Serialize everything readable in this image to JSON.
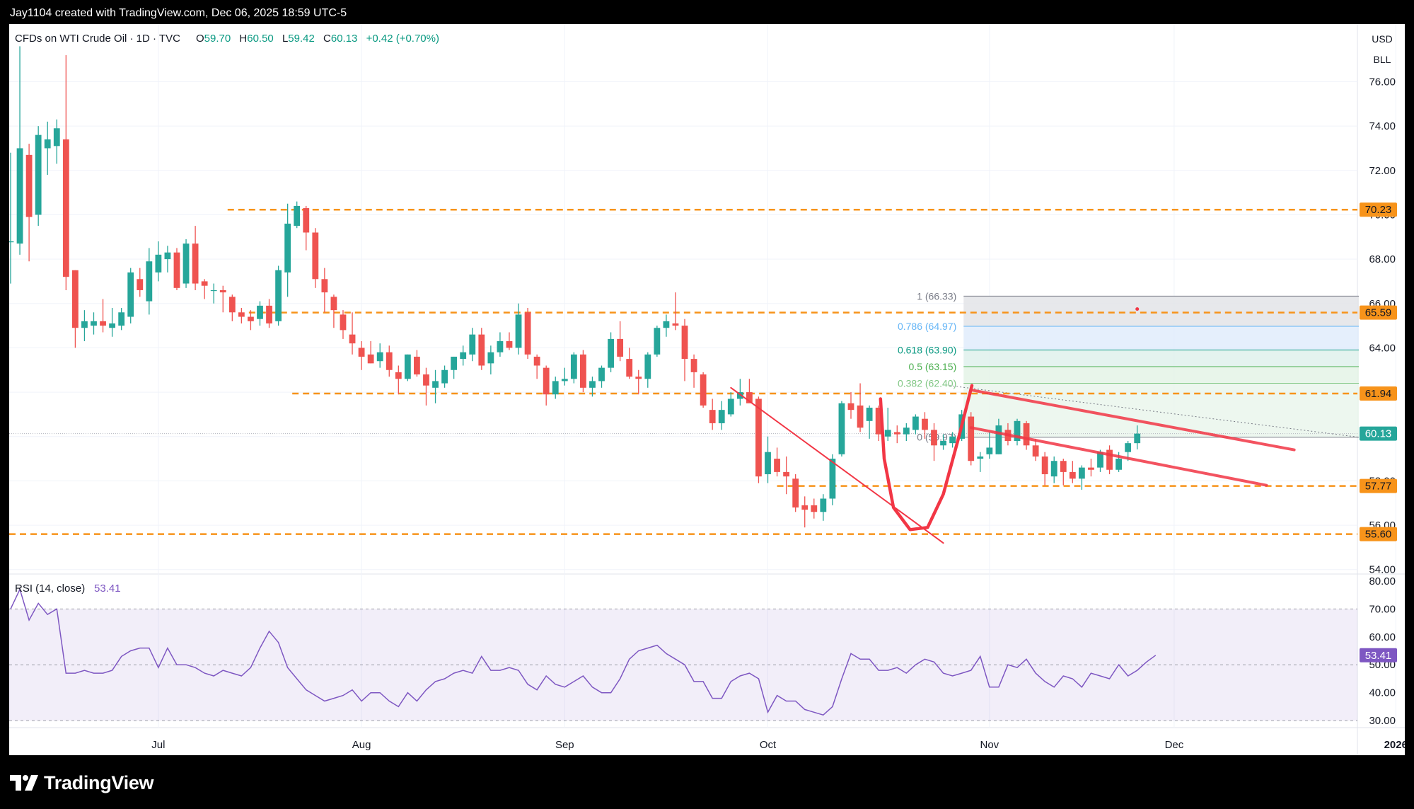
{
  "header": {
    "attribution": "Jay1104 created with TradingView.com, Dec 06, 2025 18:59 UTC-5"
  },
  "legend": {
    "symbol": "CFDs on WTI Crude Oil · 1D · TVC",
    "open_label": "O",
    "open": "59.70",
    "high_label": "H",
    "high": "60.50",
    "low_label": "L",
    "low": "59.42",
    "close_label": "C",
    "close": "60.13",
    "change": "+0.42 (+0.70%)"
  },
  "currency": "USD",
  "unit": "BLL",
  "rsi_legend": {
    "label": "RSI (14, close)",
    "value": "53.41"
  },
  "logo": {
    "text": "TradingView"
  },
  "colors": {
    "up": "#26a69a",
    "down": "#ef5350",
    "level": "#f7931a",
    "trendline": "#f23645",
    "rsi": "#7e57c2",
    "fib_text": "#089981"
  },
  "chart_data": [
    {
      "type": "candlestick",
      "title": "CFDs on WTI Crude Oil · 1D · TVC",
      "xlabel": "",
      "ylabel": "",
      "ylim": [
        53.8,
        78.6
      ],
      "y_ticks": [
        54,
        56,
        58,
        60,
        62,
        64,
        66,
        68,
        70,
        72,
        74,
        76
      ],
      "y_tick_labels": [
        "54.00",
        "56.00",
        "58.00",
        "60.00",
        "62.00",
        "64.00",
        "66.00",
        "68.00",
        "70.00",
        "72.00",
        "74.00",
        "76.00"
      ],
      "x_labels": [
        {
          "label": "Jul",
          "index": 16
        },
        {
          "label": "Aug",
          "index": 38
        },
        {
          "label": "Sep",
          "index": 60
        },
        {
          "label": "Oct",
          "index": 82
        },
        {
          "label": "Nov",
          "index": 106
        },
        {
          "label": "Dec",
          "index": 126
        },
        {
          "label": "2026",
          "index": 150
        }
      ],
      "candles": [
        {
          "o": 68.8,
          "h": 72.8,
          "l": 66.9,
          "c": 68.8
        },
        {
          "o": 68.7,
          "h": 77.6,
          "l": 68.2,
          "c": 73.0
        },
        {
          "o": 72.7,
          "h": 73.2,
          "l": 67.9,
          "c": 69.9
        },
        {
          "o": 70.0,
          "h": 74.0,
          "l": 69.5,
          "c": 73.6
        },
        {
          "o": 73.0,
          "h": 74.2,
          "l": 71.8,
          "c": 73.4
        },
        {
          "o": 73.1,
          "h": 74.3,
          "l": 72.3,
          "c": 73.9
        },
        {
          "o": 73.4,
          "h": 77.2,
          "l": 66.6,
          "c": 67.2
        },
        {
          "o": 67.5,
          "h": 67.5,
          "l": 64.0,
          "c": 64.9
        },
        {
          "o": 64.9,
          "h": 65.7,
          "l": 64.3,
          "c": 65.2
        },
        {
          "o": 65.0,
          "h": 65.6,
          "l": 64.6,
          "c": 65.2
        },
        {
          "o": 65.2,
          "h": 66.2,
          "l": 64.7,
          "c": 65.0
        },
        {
          "o": 64.9,
          "h": 65.8,
          "l": 64.5,
          "c": 65.1
        },
        {
          "o": 65.0,
          "h": 65.8,
          "l": 64.8,
          "c": 65.6
        },
        {
          "o": 65.4,
          "h": 67.6,
          "l": 65.1,
          "c": 67.4
        },
        {
          "o": 67.1,
          "h": 67.6,
          "l": 66.3,
          "c": 66.6
        },
        {
          "o": 66.1,
          "h": 68.5,
          "l": 65.5,
          "c": 67.9
        },
        {
          "o": 67.4,
          "h": 68.8,
          "l": 67.0,
          "c": 68.2
        },
        {
          "o": 68.0,
          "h": 68.6,
          "l": 67.4,
          "c": 68.3
        },
        {
          "o": 68.3,
          "h": 68.5,
          "l": 66.6,
          "c": 66.7
        },
        {
          "o": 66.9,
          "h": 68.9,
          "l": 66.7,
          "c": 68.7
        },
        {
          "o": 68.7,
          "h": 69.5,
          "l": 66.6,
          "c": 66.9
        },
        {
          "o": 67.0,
          "h": 67.1,
          "l": 66.2,
          "c": 66.8
        },
        {
          "o": 66.6,
          "h": 66.9,
          "l": 66.0,
          "c": 66.6
        },
        {
          "o": 66.6,
          "h": 66.8,
          "l": 65.6,
          "c": 66.5
        },
        {
          "o": 66.3,
          "h": 66.4,
          "l": 65.2,
          "c": 65.6
        },
        {
          "o": 65.6,
          "h": 65.8,
          "l": 65.1,
          "c": 65.4
        },
        {
          "o": 65.4,
          "h": 65.7,
          "l": 64.8,
          "c": 65.2
        },
        {
          "o": 65.3,
          "h": 66.1,
          "l": 65.0,
          "c": 65.9
        },
        {
          "o": 65.9,
          "h": 66.2,
          "l": 64.9,
          "c": 65.1
        },
        {
          "o": 65.2,
          "h": 67.7,
          "l": 65.0,
          "c": 67.5
        },
        {
          "o": 67.4,
          "h": 70.5,
          "l": 66.3,
          "c": 69.6
        },
        {
          "o": 69.5,
          "h": 70.6,
          "l": 69.4,
          "c": 70.4
        },
        {
          "o": 70.3,
          "h": 70.4,
          "l": 68.4,
          "c": 69.2
        },
        {
          "o": 69.2,
          "h": 69.4,
          "l": 66.7,
          "c": 67.1
        },
        {
          "o": 67.1,
          "h": 67.6,
          "l": 65.6,
          "c": 66.5
        },
        {
          "o": 66.3,
          "h": 66.4,
          "l": 64.9,
          "c": 65.7
        },
        {
          "o": 65.5,
          "h": 65.7,
          "l": 64.4,
          "c": 64.8
        },
        {
          "o": 64.6,
          "h": 65.6,
          "l": 63.7,
          "c": 64.2
        },
        {
          "o": 64.0,
          "h": 64.3,
          "l": 63.0,
          "c": 63.6
        },
        {
          "o": 63.7,
          "h": 64.3,
          "l": 63.3,
          "c": 63.3
        },
        {
          "o": 63.4,
          "h": 64.2,
          "l": 63.1,
          "c": 63.8
        },
        {
          "o": 63.8,
          "h": 64.1,
          "l": 62.7,
          "c": 63.0
        },
        {
          "o": 62.9,
          "h": 63.2,
          "l": 61.9,
          "c": 62.6
        },
        {
          "o": 62.6,
          "h": 63.7,
          "l": 62.5,
          "c": 63.7
        },
        {
          "o": 63.6,
          "h": 63.9,
          "l": 62.7,
          "c": 62.8
        },
        {
          "o": 62.8,
          "h": 63.1,
          "l": 61.4,
          "c": 62.3
        },
        {
          "o": 62.2,
          "h": 63.0,
          "l": 61.5,
          "c": 62.5
        },
        {
          "o": 62.4,
          "h": 63.2,
          "l": 62.2,
          "c": 63.0
        },
        {
          "o": 63.0,
          "h": 63.6,
          "l": 62.6,
          "c": 63.6
        },
        {
          "o": 63.5,
          "h": 64.1,
          "l": 63.2,
          "c": 63.8
        },
        {
          "o": 63.7,
          "h": 64.9,
          "l": 63.4,
          "c": 64.6
        },
        {
          "o": 64.6,
          "h": 64.9,
          "l": 63.0,
          "c": 63.2
        },
        {
          "o": 63.3,
          "h": 64.1,
          "l": 62.8,
          "c": 63.8
        },
        {
          "o": 63.8,
          "h": 64.7,
          "l": 63.6,
          "c": 64.3
        },
        {
          "o": 64.3,
          "h": 64.7,
          "l": 63.9,
          "c": 64.0
        },
        {
          "o": 64.0,
          "h": 66.0,
          "l": 63.7,
          "c": 65.5
        },
        {
          "o": 65.6,
          "h": 65.8,
          "l": 63.5,
          "c": 63.7
        },
        {
          "o": 63.6,
          "h": 63.7,
          "l": 62.6,
          "c": 63.2
        },
        {
          "o": 63.1,
          "h": 63.2,
          "l": 61.4,
          "c": 61.9
        },
        {
          "o": 61.9,
          "h": 62.7,
          "l": 61.7,
          "c": 62.5
        },
        {
          "o": 62.5,
          "h": 63.1,
          "l": 62.3,
          "c": 62.6
        },
        {
          "o": 62.6,
          "h": 63.8,
          "l": 62.4,
          "c": 63.7
        },
        {
          "o": 63.7,
          "h": 63.9,
          "l": 62.0,
          "c": 62.2
        },
        {
          "o": 62.2,
          "h": 62.7,
          "l": 61.8,
          "c": 62.5
        },
        {
          "o": 62.5,
          "h": 63.2,
          "l": 62.2,
          "c": 63.1
        },
        {
          "o": 63.1,
          "h": 64.7,
          "l": 62.9,
          "c": 64.4
        },
        {
          "o": 64.4,
          "h": 65.2,
          "l": 63.4,
          "c": 63.6
        },
        {
          "o": 63.5,
          "h": 64.0,
          "l": 62.6,
          "c": 62.7
        },
        {
          "o": 62.7,
          "h": 63.0,
          "l": 61.9,
          "c": 62.6
        },
        {
          "o": 62.6,
          "h": 63.8,
          "l": 62.2,
          "c": 63.7
        },
        {
          "o": 63.7,
          "h": 65.0,
          "l": 63.6,
          "c": 64.9
        },
        {
          "o": 64.9,
          "h": 65.5,
          "l": 64.5,
          "c": 65.2
        },
        {
          "o": 65.1,
          "h": 66.5,
          "l": 64.8,
          "c": 65.0
        },
        {
          "o": 65.0,
          "h": 65.3,
          "l": 62.5,
          "c": 63.5
        },
        {
          "o": 63.5,
          "h": 63.7,
          "l": 62.2,
          "c": 62.9
        },
        {
          "o": 62.8,
          "h": 62.9,
          "l": 61.3,
          "c": 61.4
        },
        {
          "o": 61.2,
          "h": 61.7,
          "l": 60.3,
          "c": 60.6
        },
        {
          "o": 60.6,
          "h": 61.6,
          "l": 60.3,
          "c": 61.2
        },
        {
          "o": 61.0,
          "h": 62.0,
          "l": 60.9,
          "c": 61.7
        },
        {
          "o": 61.7,
          "h": 62.6,
          "l": 61.4,
          "c": 62.0
        },
        {
          "o": 62.0,
          "h": 62.6,
          "l": 61.6,
          "c": 61.5
        },
        {
          "o": 61.7,
          "h": 61.8,
          "l": 57.9,
          "c": 58.2
        },
        {
          "o": 58.3,
          "h": 60.0,
          "l": 57.9,
          "c": 59.3
        },
        {
          "o": 59.0,
          "h": 59.5,
          "l": 58.2,
          "c": 58.4
        },
        {
          "o": 58.4,
          "h": 59.1,
          "l": 57.4,
          "c": 58.2
        },
        {
          "o": 58.1,
          "h": 58.3,
          "l": 56.6,
          "c": 56.8
        },
        {
          "o": 56.9,
          "h": 57.3,
          "l": 55.9,
          "c": 56.7
        },
        {
          "o": 56.9,
          "h": 57.2,
          "l": 56.3,
          "c": 56.6
        },
        {
          "o": 56.6,
          "h": 57.4,
          "l": 56.2,
          "c": 57.2
        },
        {
          "o": 57.2,
          "h": 59.2,
          "l": 56.9,
          "c": 59.0
        },
        {
          "o": 59.2,
          "h": 61.6,
          "l": 59.1,
          "c": 61.5
        },
        {
          "o": 61.5,
          "h": 62.0,
          "l": 60.8,
          "c": 61.2
        },
        {
          "o": 61.4,
          "h": 62.4,
          "l": 60.2,
          "c": 60.4
        },
        {
          "o": 60.7,
          "h": 61.4,
          "l": 59.9,
          "c": 61.3
        },
        {
          "o": 61.3,
          "h": 61.4,
          "l": 59.8,
          "c": 60.1
        },
        {
          "o": 60.0,
          "h": 61.3,
          "l": 59.8,
          "c": 60.3
        },
        {
          "o": 60.2,
          "h": 60.5,
          "l": 59.7,
          "c": 60.1
        },
        {
          "o": 60.1,
          "h": 60.6,
          "l": 59.8,
          "c": 60.4
        },
        {
          "o": 60.3,
          "h": 61.0,
          "l": 60.1,
          "c": 60.9
        },
        {
          "o": 60.8,
          "h": 61.1,
          "l": 59.9,
          "c": 60.3
        },
        {
          "o": 60.3,
          "h": 60.6,
          "l": 58.9,
          "c": 59.6
        },
        {
          "o": 59.6,
          "h": 60.1,
          "l": 59.4,
          "c": 59.8
        },
        {
          "o": 59.7,
          "h": 60.2,
          "l": 59.5,
          "c": 60.0
        },
        {
          "o": 59.9,
          "h": 61.2,
          "l": 59.8,
          "c": 61.0
        },
        {
          "o": 60.9,
          "h": 61.1,
          "l": 58.7,
          "c": 58.9
        },
        {
          "o": 59.0,
          "h": 59.3,
          "l": 58.4,
          "c": 59.1
        },
        {
          "o": 59.2,
          "h": 60.2,
          "l": 59.0,
          "c": 59.5
        },
        {
          "o": 59.2,
          "h": 60.8,
          "l": 59.2,
          "c": 60.5
        },
        {
          "o": 60.3,
          "h": 60.6,
          "l": 59.6,
          "c": 59.8
        },
        {
          "o": 59.8,
          "h": 60.8,
          "l": 59.6,
          "c": 60.7
        },
        {
          "o": 60.6,
          "h": 60.7,
          "l": 59.4,
          "c": 59.6
        },
        {
          "o": 59.6,
          "h": 59.9,
          "l": 58.9,
          "c": 59.1
        },
        {
          "o": 59.1,
          "h": 59.3,
          "l": 57.8,
          "c": 58.3
        },
        {
          "o": 58.2,
          "h": 59.1,
          "l": 57.9,
          "c": 58.9
        },
        {
          "o": 58.9,
          "h": 59.0,
          "l": 57.8,
          "c": 58.4
        },
        {
          "o": 58.4,
          "h": 58.9,
          "l": 57.9,
          "c": 58.1
        },
        {
          "o": 58.1,
          "h": 58.7,
          "l": 57.6,
          "c": 58.6
        },
        {
          "o": 58.6,
          "h": 59.0,
          "l": 58.2,
          "c": 58.5
        },
        {
          "o": 58.6,
          "h": 59.4,
          "l": 58.4,
          "c": 59.3
        },
        {
          "o": 59.4,
          "h": 59.6,
          "l": 58.3,
          "c": 58.5
        },
        {
          "o": 58.5,
          "h": 59.3,
          "l": 58.4,
          "c": 59.0
        },
        {
          "o": 59.3,
          "h": 59.8,
          "l": 58.9,
          "c": 59.7
        },
        {
          "o": 59.7,
          "h": 60.5,
          "l": 59.42,
          "c": 60.13
        }
      ],
      "last_price": 60.13,
      "levels": [
        {
          "price": 70.23,
          "label": "70.23"
        },
        {
          "price": 65.59,
          "label": "65.59"
        },
        {
          "price": 61.94,
          "label": "61.94"
        },
        {
          "price": 57.77,
          "label": "57.77"
        },
        {
          "price": 55.6,
          "label": "55.60"
        }
      ],
      "fibonacci": [
        {
          "ratio": "1",
          "price": 66.33,
          "label": "1 (66.33)",
          "color": "#787b86"
        },
        {
          "ratio": "0.786",
          "price": 64.97,
          "label": "0.786 (64.97)",
          "color": "#64b5f6"
        },
        {
          "ratio": "0.618",
          "price": 63.9,
          "label": "0.618 (63.90)",
          "color": "#089981"
        },
        {
          "ratio": "0.5",
          "price": 63.15,
          "label": "0.5 (63.15)",
          "color": "#4caf50"
        },
        {
          "ratio": "0.382",
          "price": 62.4,
          "label": "0.382 (62.40)",
          "color": "#81c784"
        },
        {
          "ratio": "0",
          "price": 59.97,
          "label": "0 (59.97)",
          "color": "#787b86"
        }
      ],
      "trendlines": [
        {
          "name": "falling-wedge-upper",
          "from": {
            "index": 104,
            "price": 62.1
          },
          "to": {
            "index": 139,
            "price": 59.4
          }
        },
        {
          "name": "falling-wedge-lower",
          "from": {
            "index": 104,
            "price": 60.4
          },
          "to": {
            "index": 136,
            "price": 57.8
          }
        },
        {
          "name": "decline-trendline",
          "from": {
            "index": 78,
            "price": 62.2
          },
          "to": {
            "index": 101,
            "price": 55.2
          }
        }
      ]
    },
    {
      "type": "line",
      "title": "RSI (14, close)",
      "xlabel": "",
      "ylabel": "",
      "ylim": [
        27.5,
        82.5
      ],
      "y_ticks": [
        30,
        40,
        50,
        60,
        70,
        80
      ],
      "y_tick_labels": [
        "30.00",
        "40.00",
        "50.00",
        "60.00",
        "70.00",
        "80.00"
      ],
      "band": [
        30,
        70
      ],
      "midline": 50,
      "series": [
        {
          "name": "RSI (14, close)",
          "values": [
            70,
            77,
            66,
            72,
            68,
            70,
            47,
            47,
            48,
            47,
            47,
            48,
            53,
            55,
            56,
            56,
            49,
            56,
            50,
            50,
            49,
            47,
            46,
            48,
            47,
            46,
            49,
            56,
            62,
            58,
            49,
            45,
            41,
            39,
            37,
            38,
            39,
            41,
            37,
            40,
            40,
            37,
            35,
            40,
            37,
            41,
            44,
            45,
            47,
            48,
            47,
            53,
            48,
            48,
            49,
            48,
            43,
            41,
            46,
            43,
            42,
            44,
            46,
            42,
            40,
            40,
            45,
            52,
            55,
            56,
            57,
            54,
            52,
            50,
            44,
            44,
            38,
            38,
            44,
            46,
            47,
            45,
            33,
            39,
            37,
            37,
            34,
            33,
            32,
            35,
            45,
            54,
            52,
            52,
            48,
            48,
            49,
            47,
            50,
            52,
            51,
            47,
            46,
            47,
            48,
            53,
            42,
            42,
            50,
            49,
            52,
            47,
            44,
            42,
            46,
            45,
            42,
            47,
            46,
            45,
            50,
            46,
            48,
            51,
            53.41
          ]
        }
      ]
    }
  ]
}
